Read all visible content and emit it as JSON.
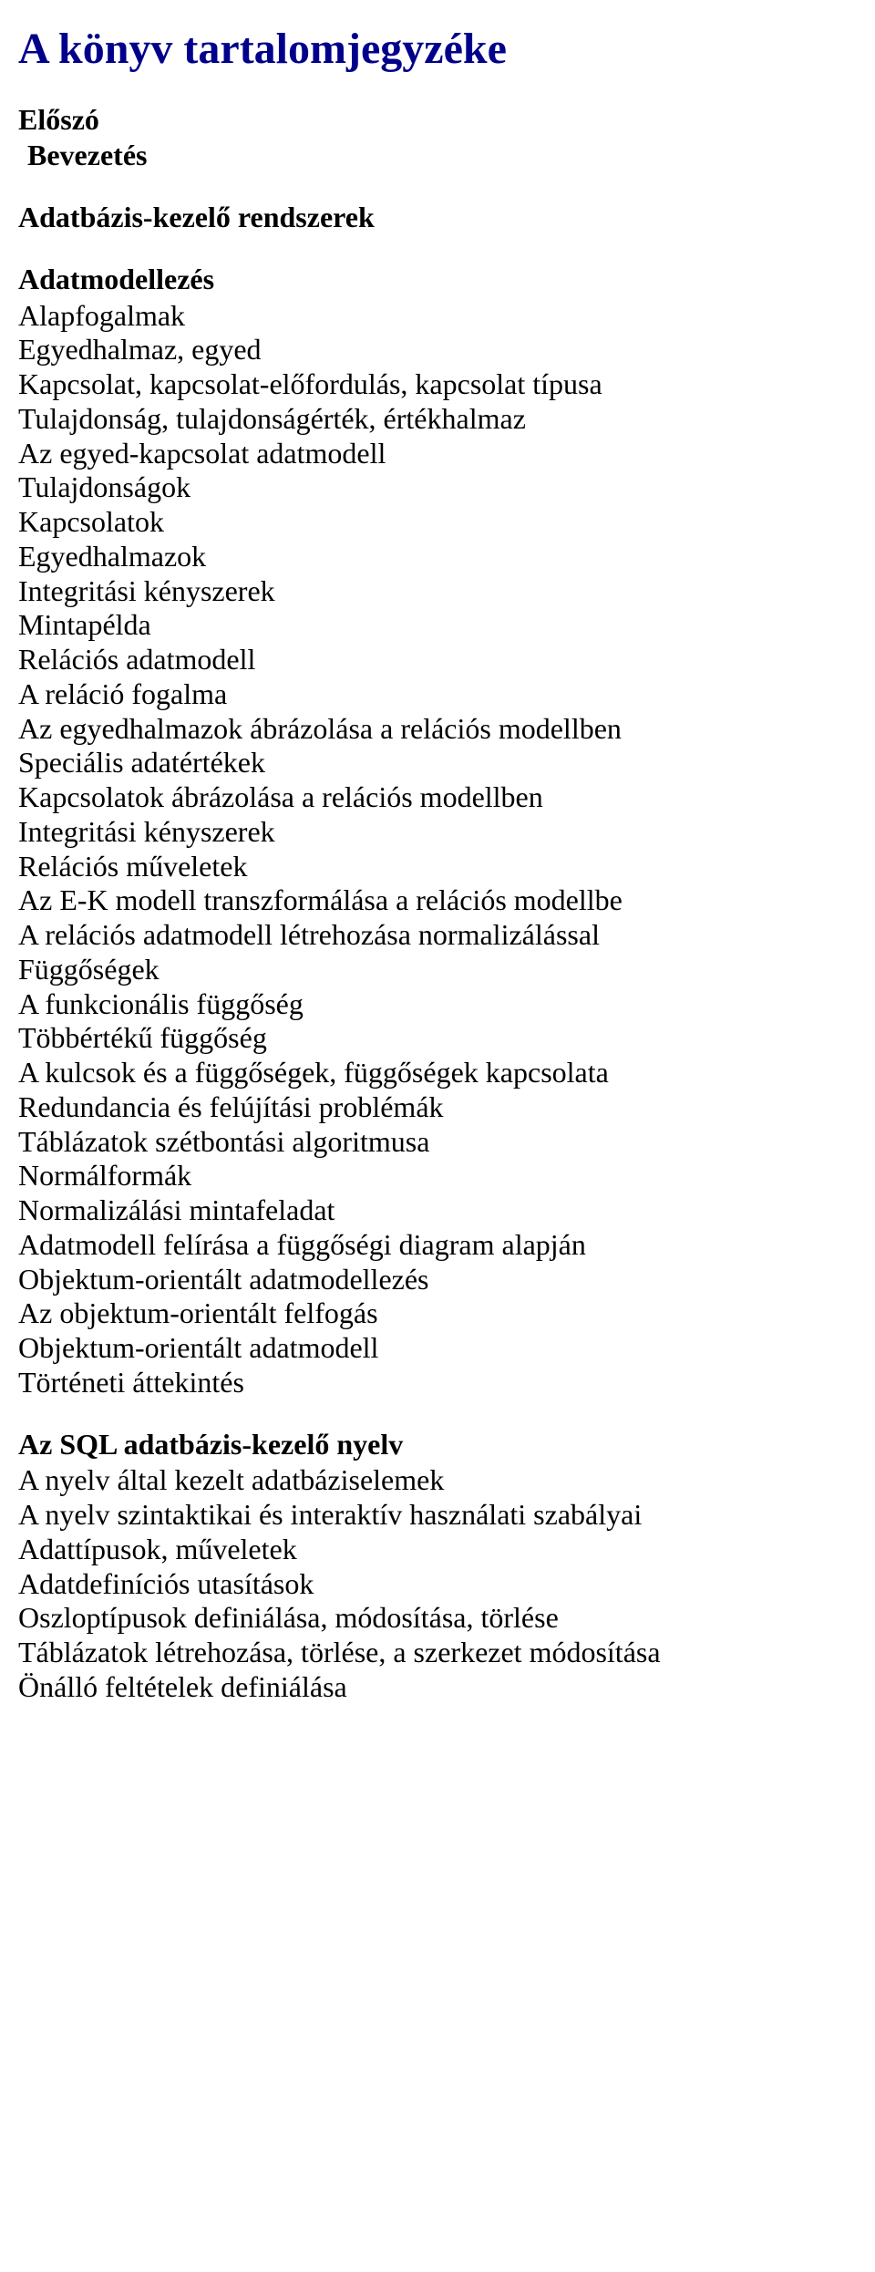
{
  "title": "A könyv tartalomjegyzéke",
  "sections": [
    {
      "heading": "Előszó",
      "indent": false,
      "lines": []
    },
    {
      "heading": "Bevezetés",
      "indent": true,
      "lines": []
    },
    {
      "heading": "Adatbázis-kezelő rendszerek",
      "indent": false,
      "lines": []
    },
    {
      "heading": "Adatmodellezés",
      "indent": false,
      "lines": [
        "Alapfogalmak",
        "Egyedhalmaz, egyed",
        "Kapcsolat, kapcsolat-előfordulás, kapcsolat típusa",
        "Tulajdonság, tulajdonságérték, értékhalmaz",
        "Az egyed-kapcsolat adatmodell",
        "Tulajdonságok",
        "Kapcsolatok",
        "Egyedhalmazok",
        "Integritási kényszerek",
        "Mintapélda",
        "Relációs adatmodell",
        "A reláció fogalma",
        "Az egyedhalmazok ábrázolása a relációs modellben",
        "Speciális adatértékek",
        "Kapcsolatok ábrázolása a relációs modellben",
        "Integritási kényszerek",
        "Relációs műveletek",
        "Az E-K modell transzformálása a relációs modellbe",
        "A relációs adatmodell létrehozása normalizálással",
        "Függőségek",
        "A funkcionális függőség",
        "Többértékű függőség",
        "A kulcsok és a függőségek, függőségek kapcsolata",
        "Redundancia és felújítási problémák",
        "Táblázatok szétbontási algoritmusa",
        "Normálformák",
        "Normalizálási mintafeladat",
        "Adatmodell felírása a függőségi diagram alapján",
        "Objektum-orientált adatmodellezés",
        "Az objektum-orientált felfogás",
        "Objektum-orientált adatmodell",
        "Történeti áttekintés"
      ]
    },
    {
      "heading": "Az SQL adatbázis-kezelő nyelv",
      "indent": false,
      "lines": [
        "A nyelv által kezelt adatbáziselemek",
        "A nyelv szintaktikai és interaktív használati szabályai",
        "Adattípusok, műveletek",
        "Adatdefiníciós utasítások",
        "Oszloptípusok definiálása, módosítása, törlése",
        "Táblázatok létrehozása, törlése, a szerkezet módosítása",
        "Önálló feltételek definiálása"
      ]
    }
  ]
}
